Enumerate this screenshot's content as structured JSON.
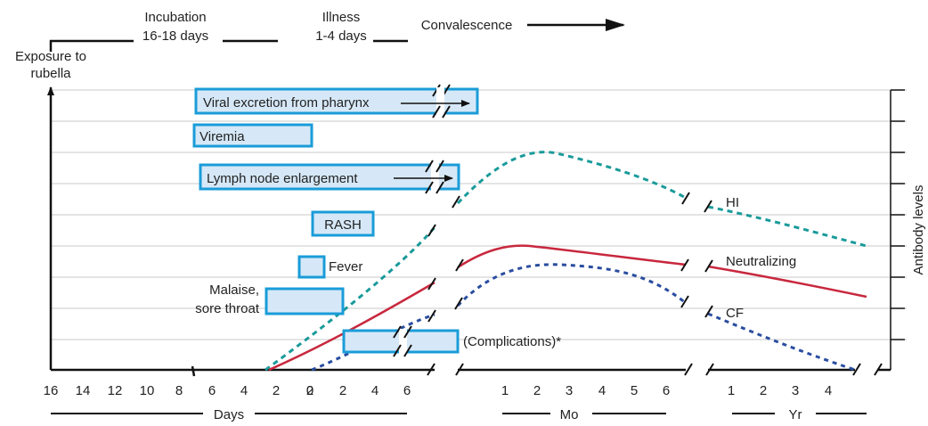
{
  "timeline": {
    "incubation": [
      "Incubation",
      "16-18 days"
    ],
    "illness": [
      "Illness",
      "1-4 days"
    ],
    "convalescence": "Convalescence",
    "exposure": [
      "Exposure to",
      "rubella"
    ]
  },
  "bars": {
    "viral_excretion": "Viral excretion from pharynx",
    "viremia": "Viremia",
    "lymph": "Lymph node enlargement",
    "rash": "RASH",
    "fever": "Fever",
    "malaise": [
      "Malaise,",
      "sore throat"
    ],
    "complications": "(Complications)*"
  },
  "curves": {
    "hi": "HI",
    "neutralizing": "Neutralizing",
    "cf": "CF"
  },
  "axes": {
    "y_label": "Antibody levels",
    "days_label": "Days",
    "months_label": "Mo",
    "years_label": "Yr",
    "days_ticks": [
      "16",
      "14",
      "12",
      "10",
      "8",
      "6",
      "4",
      "2",
      "2",
      "0",
      "2",
      "4",
      "6"
    ],
    "month_ticks": [
      "1",
      "2",
      "3",
      "4",
      "5",
      "6"
    ],
    "year_ticks": [
      "1",
      "2",
      "3",
      "4"
    ]
  },
  "colors": {
    "box_fill": "#d6e8f7",
    "box_stroke": "#1a9cd8",
    "hi": "#1a9a9a",
    "neutralizing": "#c8283e",
    "cf": "#2a4da0"
  }
}
